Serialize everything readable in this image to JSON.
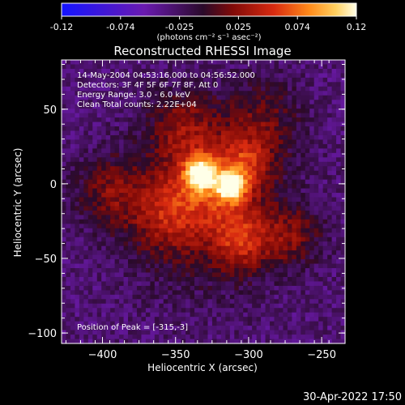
{
  "colorbar": {
    "tick_labels": [
      "-0.12",
      "-0.074",
      "-0.025",
      "0.025",
      "0.074",
      "0.12"
    ],
    "units": "(photons cm⁻² s⁻¹ asec⁻²)"
  },
  "annotations": {
    "time_range": "14-May-2004 04:53:16.000 to 04:56:52.000",
    "detectors": "Detectors: 3F 4F 5F 6F 7F 8F, Att 0",
    "energy": "Energy Range: 3.0 - 6.0 keV",
    "clean": "Clean     Total counts: 2.22E+04",
    "peak": "Position of Peak = [-315,-3]"
  },
  "footer": {
    "date": "30-Apr-2022 17:50"
  },
  "colors": {
    "background": "#000000",
    "colormap": [
      "#1414ff",
      "#5a1aa8",
      "#2a0a2a",
      "#7a0a08",
      "#d83010",
      "#ff8a1a",
      "#ffd060",
      "#ffffe8"
    ]
  },
  "chart_data": {
    "type": "heatmap",
    "title": "Reconstructed RHESSI Image",
    "xlabel": "Heliocentric X (arcsec)",
    "ylabel": "Heliocentric Y (arcsec)",
    "xlim": [
      -428,
      -234
    ],
    "ylim": [
      -107,
      83
    ],
    "xticks": [
      -400,
      -350,
      -300,
      -250
    ],
    "yticks": [
      -100,
      -50,
      0,
      50
    ],
    "colorbar_range": [
      -0.12,
      0.12
    ],
    "grid": false,
    "peak": {
      "x": -315,
      "y": -3
    },
    "sources": [
      {
        "x": -333,
        "y": 7,
        "amp": 0.115,
        "sigma": 7
      },
      {
        "x": -312,
        "y": -2,
        "amp": 0.11,
        "sigma": 7
      },
      {
        "x": -325,
        "y": 2,
        "amp": 0.05,
        "sigma": 20
      },
      {
        "x": -305,
        "y": -38,
        "amp": 0.06,
        "sigma": 14
      },
      {
        "x": -300,
        "y": 15,
        "amp": 0.045,
        "sigma": 12
      },
      {
        "x": -355,
        "y": -20,
        "amp": 0.045,
        "sigma": 18
      },
      {
        "x": -395,
        "y": -5,
        "amp": 0.04,
        "sigma": 16
      },
      {
        "x": -290,
        "y": 45,
        "amp": 0.035,
        "sigma": 18
      },
      {
        "x": -270,
        "y": -35,
        "amp": 0.04,
        "sigma": 14
      },
      {
        "x": -345,
        "y": 40,
        "amp": 0.04,
        "sigma": 16
      },
      {
        "x": -330,
        "y": -15,
        "amp": 0.035,
        "sigma": 40
      }
    ],
    "baseline": -0.035
  }
}
